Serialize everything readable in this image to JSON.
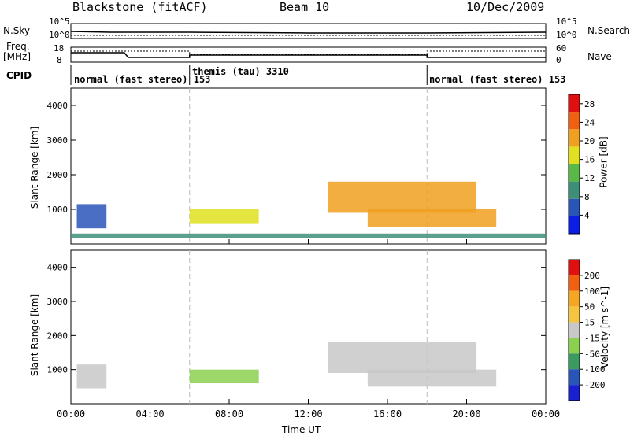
{
  "header": {
    "station": "Blackstone (fitACF)",
    "beam": "Beam 10",
    "date": "10/Dec/2009"
  },
  "strip_labels": {
    "nsky": "N.Sky",
    "nsearch": "N.Search",
    "freq": "Freq.",
    "freq_unit": "[MHz]",
    "nave": "Nave",
    "cpid": "CPID"
  },
  "strip_ticks": {
    "nsky_top": "10^5",
    "nsky_bottom": "10^0",
    "nsearch_top": "10^5",
    "nsearch_bottom": "10^0",
    "freq_top": "18",
    "freq_bottom": "8",
    "nave_top": "60",
    "nave_bottom": "0"
  },
  "cpid_segments": [
    {
      "label": "normal (fast stereo) 153",
      "start_hour": 0
    },
    {
      "label": "themis (tau) 3310",
      "start_hour": 6
    },
    {
      "label": "normal (fast stereo) 153",
      "start_hour": 18
    }
  ],
  "colors": {
    "power": [
      "#0a1ee6",
      "#2a55b8",
      "#3d8f78",
      "#59b848",
      "#e0e020",
      "#f0a020",
      "#f06010",
      "#e01010"
    ],
    "velocity": [
      "#e01010",
      "#f06010",
      "#f5a623",
      "#f5c542",
      "#c8c8c8",
      "#8cd050",
      "#3a9a60",
      "#2a55b8",
      "#1a20d0"
    ]
  },
  "chart_data": [
    {
      "type": "heatmap",
      "panel": "power",
      "ylabel": "Slant Range [km]",
      "xlim_hours": [
        0,
        24
      ],
      "ylim": [
        0,
        4500
      ],
      "yticks": [
        "1000",
        "2000",
        "3000",
        "4000"
      ],
      "colorbar_label": "Power [dB]",
      "colorbar_ticks": [
        "4",
        "8",
        "12",
        "16",
        "20",
        "24",
        "28"
      ],
      "colorbar_range": [
        0,
        30
      ],
      "regions": [
        {
          "t0": 0.3,
          "t1": 1.8,
          "r0": 450,
          "r1": 1150,
          "value": 6
        },
        {
          "t0": 6.0,
          "t1": 9.5,
          "r0": 600,
          "r1": 1000,
          "value": 18
        },
        {
          "t0": 13.0,
          "t1": 20.5,
          "r0": 900,
          "r1": 1800,
          "value": 20
        },
        {
          "t0": 15.0,
          "t1": 21.5,
          "r0": 500,
          "r1": 1000,
          "value": 22
        },
        {
          "t0": 0.0,
          "t1": 24.0,
          "r0": 180,
          "r1": 300,
          "value": 8
        }
      ]
    },
    {
      "type": "heatmap",
      "panel": "velocity",
      "ylabel": "Slant Range [km]",
      "xlabel": "Time UT",
      "xlim_hours": [
        0,
        24
      ],
      "ylim": [
        0,
        4500
      ],
      "xticks": [
        "00:00",
        "04:00",
        "08:00",
        "12:00",
        "16:00",
        "20:00",
        "00:00"
      ],
      "yticks": [
        "1000",
        "2000",
        "3000",
        "4000"
      ],
      "colorbar_label": "Velocity [m s^-1]",
      "colorbar_ticks": [
        "200",
        "100",
        "50",
        "15",
        "-15",
        "-50",
        "-100",
        "-200"
      ],
      "colorbar_range": [
        -250,
        250
      ],
      "regions": [
        {
          "t0": 0.3,
          "t1": 1.8,
          "r0": 450,
          "r1": 1150,
          "value": 0
        },
        {
          "t0": 6.0,
          "t1": 9.5,
          "r0": 600,
          "r1": 1000,
          "value": -60
        },
        {
          "t0": 13.0,
          "t1": 20.5,
          "r0": 900,
          "r1": 1800,
          "value": 0
        },
        {
          "t0": 15.0,
          "t1": 21.5,
          "r0": 500,
          "r1": 1000,
          "value": 0
        }
      ]
    }
  ]
}
